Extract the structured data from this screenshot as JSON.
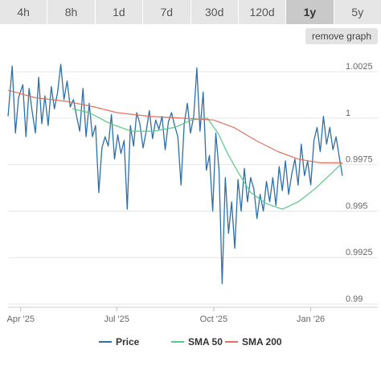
{
  "tabs": [
    {
      "label": "4h",
      "active": false
    },
    {
      "label": "8h",
      "active": false
    },
    {
      "label": "1d",
      "active": false
    },
    {
      "label": "7d",
      "active": false
    },
    {
      "label": "30d",
      "active": false
    },
    {
      "label": "120d",
      "active": false
    },
    {
      "label": "1y",
      "active": true
    },
    {
      "label": "5y",
      "active": false
    }
  ],
  "remove_graph_label": "remove graph",
  "chart_data": {
    "type": "line",
    "ylim": [
      0.99,
      1.0035
    ],
    "y_ticks": [
      1.0025,
      1,
      0.9975,
      0.995,
      0.9925,
      0.99
    ],
    "y_tick_labels": [
      "1.0025",
      "1",
      "0.9975",
      "0.995",
      "0.9925",
      "0.99"
    ],
    "x_start": "2025-03-20",
    "x_end": "2026-01-31",
    "x_ticks": [
      {
        "date": "2025-04-01",
        "label": "Apr '25"
      },
      {
        "date": "2025-07-01",
        "label": "Jul '25"
      },
      {
        "date": "2025-10-01",
        "label": "Oct '25"
      },
      {
        "date": "2026-01-01",
        "label": "Jan '26"
      }
    ],
    "grid": true,
    "legend_position": "bottom",
    "series": [
      {
        "name": "Price",
        "color": "#2d6fa8",
        "points": [
          [
            "2025-03-20",
            1.0001
          ],
          [
            "2025-03-24",
            1.0028
          ],
          [
            "2025-03-27",
            0.9992
          ],
          [
            "2025-03-30",
            1.0011
          ],
          [
            "2025-04-03",
            1.0018
          ],
          [
            "2025-04-06",
            0.999
          ],
          [
            "2025-04-09",
            1.0016
          ],
          [
            "2025-04-12",
            1.0003
          ],
          [
            "2025-04-15",
            0.9992
          ],
          [
            "2025-04-18",
            1.0022
          ],
          [
            "2025-04-21",
            0.9997
          ],
          [
            "2025-04-24",
            1.0012
          ],
          [
            "2025-04-27",
            0.9996
          ],
          [
            "2025-04-30",
            1.0017
          ],
          [
            "2025-05-03",
            1.0005
          ],
          [
            "2025-05-06",
            1.0014
          ],
          [
            "2025-05-09",
            1.0029
          ],
          [
            "2025-05-12",
            1.001
          ],
          [
            "2025-05-15",
            1.002
          ],
          [
            "2025-05-18",
            1.0006
          ],
          [
            "2025-05-21",
            1.001
          ],
          [
            "2025-05-24",
            1.0001
          ],
          [
            "2025-05-27",
            0.9993
          ],
          [
            "2025-05-30",
            1.0016
          ],
          [
            "2025-06-02",
            0.999
          ],
          [
            "2025-06-05",
            1.0008
          ],
          [
            "2025-06-08",
            0.999
          ],
          [
            "2025-06-11",
            0.9996
          ],
          [
            "2025-06-14",
            0.996
          ],
          [
            "2025-06-17",
            0.9984
          ],
          [
            "2025-06-20",
            0.999
          ],
          [
            "2025-06-23",
            0.9985
          ],
          [
            "2025-06-26",
            1.0002
          ],
          [
            "2025-06-29",
            0.9978
          ],
          [
            "2025-07-02",
            0.9991
          ],
          [
            "2025-07-05",
            0.9981
          ],
          [
            "2025-07-08",
            0.9988
          ],
          [
            "2025-07-11",
            0.9951
          ],
          [
            "2025-07-14",
            0.9996
          ],
          [
            "2025-07-17",
            0.9985
          ],
          [
            "2025-07-20",
            1.0003
          ],
          [
            "2025-07-23",
            0.9997
          ],
          [
            "2025-07-26",
            0.9984
          ],
          [
            "2025-07-29",
            0.9993
          ],
          [
            "2025-08-01",
            1.0004
          ],
          [
            "2025-08-04",
            0.9989
          ],
          [
            "2025-08-07",
            0.9999
          ],
          [
            "2025-08-10",
            0.9994
          ],
          [
            "2025-08-13",
            1.0001
          ],
          [
            "2025-08-16",
            0.9983
          ],
          [
            "2025-08-19",
            0.9998
          ],
          [
            "2025-08-22",
            1.0003
          ],
          [
            "2025-08-25",
            0.9996
          ],
          [
            "2025-08-28",
            0.999
          ],
          [
            "2025-08-31",
            0.9964
          ],
          [
            "2025-09-03",
            0.9997
          ],
          [
            "2025-09-06",
            1.0008
          ],
          [
            "2025-09-09",
            0.9992
          ],
          [
            "2025-09-12",
            1.0001
          ],
          [
            "2025-09-15",
            1.0027
          ],
          [
            "2025-09-18",
            0.9993
          ],
          [
            "2025-09-21",
            1.0014
          ],
          [
            "2025-09-24",
            0.9972
          ],
          [
            "2025-09-27",
            0.998
          ],
          [
            "2025-09-30",
            0.995
          ],
          [
            "2025-10-03",
            0.9992
          ],
          [
            "2025-10-06",
            0.9972
          ],
          [
            "2025-10-09",
            0.9911
          ],
          [
            "2025-10-12",
            0.9968
          ],
          [
            "2025-10-15",
            0.9938
          ],
          [
            "2025-10-18",
            0.9955
          ],
          [
            "2025-10-21",
            0.993
          ],
          [
            "2025-10-24",
            0.9967
          ],
          [
            "2025-10-27",
            0.995
          ],
          [
            "2025-10-30",
            0.9973
          ],
          [
            "2025-11-02",
            0.9955
          ],
          [
            "2025-11-05",
            0.9968
          ],
          [
            "2025-11-08",
            0.9962
          ],
          [
            "2025-11-11",
            0.9946
          ],
          [
            "2025-11-14",
            0.9959
          ],
          [
            "2025-11-17",
            0.995
          ],
          [
            "2025-11-20",
            0.9966
          ],
          [
            "2025-11-23",
            0.9955
          ],
          [
            "2025-11-26",
            0.9968
          ],
          [
            "2025-11-29",
            0.9953
          ],
          [
            "2025-12-02",
            0.9974
          ],
          [
            "2025-12-05",
            0.9961
          ],
          [
            "2025-12-08",
            0.9977
          ],
          [
            "2025-12-11",
            0.9959
          ],
          [
            "2025-12-14",
            0.997
          ],
          [
            "2025-12-17",
            0.9978
          ],
          [
            "2025-12-20",
            0.9964
          ],
          [
            "2025-12-23",
            0.9986
          ],
          [
            "2025-12-26",
            0.9969
          ],
          [
            "2025-12-29",
            0.9977
          ],
          [
            "2026-01-01",
            0.9964
          ],
          [
            "2026-01-04",
            0.9988
          ],
          [
            "2026-01-07",
            0.9995
          ],
          [
            "2026-01-10",
            0.9982
          ],
          [
            "2026-01-13",
            1.0001
          ],
          [
            "2026-01-16",
            0.9986
          ],
          [
            "2026-01-19",
            0.9995
          ],
          [
            "2026-01-22",
            0.9983
          ],
          [
            "2026-01-25",
            0.999
          ],
          [
            "2026-01-28",
            0.9979
          ],
          [
            "2026-01-31",
            0.9969
          ]
        ]
      },
      {
        "name": "SMA 50",
        "color": "#58c98a",
        "points": [
          [
            "2025-05-20",
            1.0005
          ],
          [
            "2025-06-05",
            1.0003
          ],
          [
            "2025-06-25",
            0.9997
          ],
          [
            "2025-07-15",
            0.9993
          ],
          [
            "2025-08-05",
            0.9993
          ],
          [
            "2025-08-25",
            0.9995
          ],
          [
            "2025-09-10",
            0.9999
          ],
          [
            "2025-09-25",
            1.0
          ],
          [
            "2025-10-05",
            0.9992
          ],
          [
            "2025-10-15",
            0.998
          ],
          [
            "2025-10-25",
            0.997
          ],
          [
            "2025-11-05",
            0.996
          ],
          [
            "2025-11-20",
            0.9954
          ],
          [
            "2025-12-05",
            0.9951
          ],
          [
            "2025-12-20",
            0.9955
          ],
          [
            "2026-01-05",
            0.9962
          ],
          [
            "2026-01-20",
            0.997
          ],
          [
            "2026-01-31",
            0.9976
          ]
        ]
      },
      {
        "name": "SMA 200",
        "color": "#e36f5c",
        "points": [
          [
            "2025-03-20",
            1.0015
          ],
          [
            "2025-04-15",
            1.0011
          ],
          [
            "2025-05-15",
            1.0009
          ],
          [
            "2025-06-10",
            1.0006
          ],
          [
            "2025-07-01",
            1.0003
          ],
          [
            "2025-08-01",
            1.0001
          ],
          [
            "2025-09-01",
            1.0
          ],
          [
            "2025-10-01",
            0.9999
          ],
          [
            "2025-10-20",
            0.9995
          ],
          [
            "2025-11-10",
            0.9988
          ],
          [
            "2025-12-01",
            0.9982
          ],
          [
            "2025-12-20",
            0.9978
          ],
          [
            "2026-01-10",
            0.9976
          ],
          [
            "2026-01-31",
            0.9976
          ]
        ]
      }
    ]
  }
}
